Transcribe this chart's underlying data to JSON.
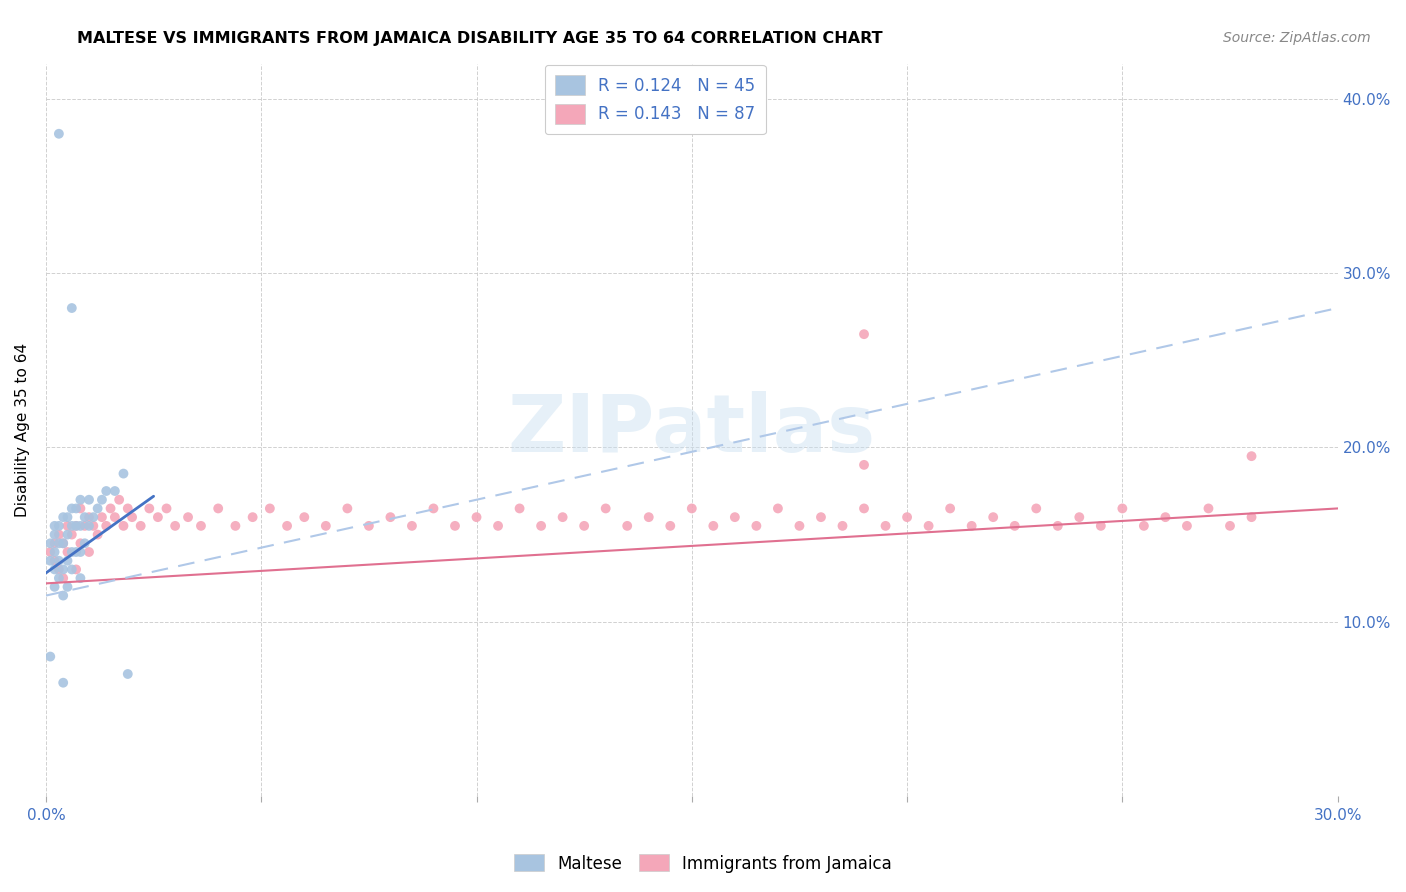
{
  "title": "MALTESE VS IMMIGRANTS FROM JAMAICA DISABILITY AGE 35 TO 64 CORRELATION CHART",
  "source": "Source: ZipAtlas.com",
  "ylabel_label": "Disability Age 35 to 64",
  "xlim": [
    0.0,
    0.3
  ],
  "ylim": [
    0.0,
    0.42
  ],
  "xtick_positions": [
    0.0,
    0.05,
    0.1,
    0.15,
    0.2,
    0.25,
    0.3
  ],
  "xtick_labels": [
    "0.0%",
    "",
    "",
    "",
    "",
    "",
    "30.0%"
  ],
  "ytick_positions": [
    0.0,
    0.1,
    0.2,
    0.3,
    0.4
  ],
  "right_ytick_labels": [
    "",
    "10.0%",
    "20.0%",
    "30.0%",
    "40.0%"
  ],
  "maltese_color": "#a8c4e0",
  "jamaica_color": "#f4a7b9",
  "maltese_line_color": "#4472c4",
  "jamaica_line_color": "#b0c8e8",
  "jamaica_line_color2": "#e07090",
  "watermark": "ZIPatlas",
  "maltese_x": [
    0.001,
    0.001,
    0.002,
    0.002,
    0.002,
    0.002,
    0.002,
    0.003,
    0.003,
    0.003,
    0.003,
    0.004,
    0.004,
    0.004,
    0.004,
    0.005,
    0.005,
    0.005,
    0.005,
    0.006,
    0.006,
    0.006,
    0.006,
    0.007,
    0.007,
    0.007,
    0.008,
    0.008,
    0.008,
    0.008,
    0.009,
    0.009,
    0.01,
    0.01,
    0.011,
    0.012,
    0.013,
    0.014,
    0.016,
    0.018,
    0.003,
    0.006,
    0.019,
    0.001,
    0.004
  ],
  "maltese_y": [
    0.135,
    0.145,
    0.12,
    0.13,
    0.14,
    0.15,
    0.155,
    0.125,
    0.135,
    0.145,
    0.155,
    0.115,
    0.13,
    0.145,
    0.16,
    0.12,
    0.135,
    0.15,
    0.16,
    0.13,
    0.14,
    0.155,
    0.165,
    0.14,
    0.155,
    0.165,
    0.125,
    0.14,
    0.155,
    0.17,
    0.145,
    0.16,
    0.155,
    0.17,
    0.16,
    0.165,
    0.17,
    0.175,
    0.175,
    0.185,
    0.38,
    0.28,
    0.07,
    0.08,
    0.065
  ],
  "jamaica_x": [
    0.001,
    0.002,
    0.002,
    0.003,
    0.003,
    0.004,
    0.004,
    0.005,
    0.005,
    0.006,
    0.007,
    0.007,
    0.008,
    0.008,
    0.009,
    0.01,
    0.01,
    0.011,
    0.012,
    0.013,
    0.014,
    0.015,
    0.016,
    0.017,
    0.018,
    0.019,
    0.02,
    0.022,
    0.024,
    0.026,
    0.028,
    0.03,
    0.033,
    0.036,
    0.04,
    0.044,
    0.048,
    0.052,
    0.056,
    0.06,
    0.065,
    0.07,
    0.075,
    0.08,
    0.085,
    0.09,
    0.095,
    0.1,
    0.105,
    0.11,
    0.115,
    0.12,
    0.125,
    0.13,
    0.135,
    0.14,
    0.145,
    0.15,
    0.155,
    0.16,
    0.165,
    0.17,
    0.175,
    0.18,
    0.185,
    0.19,
    0.195,
    0.2,
    0.205,
    0.21,
    0.215,
    0.22,
    0.225,
    0.23,
    0.235,
    0.24,
    0.245,
    0.25,
    0.255,
    0.26,
    0.265,
    0.27,
    0.275,
    0.28,
    0.19,
    0.28,
    0.19
  ],
  "jamaica_y": [
    0.14,
    0.135,
    0.145,
    0.13,
    0.15,
    0.125,
    0.145,
    0.14,
    0.155,
    0.15,
    0.13,
    0.155,
    0.145,
    0.165,
    0.155,
    0.14,
    0.16,
    0.155,
    0.15,
    0.16,
    0.155,
    0.165,
    0.16,
    0.17,
    0.155,
    0.165,
    0.16,
    0.155,
    0.165,
    0.16,
    0.165,
    0.155,
    0.16,
    0.155,
    0.165,
    0.155,
    0.16,
    0.165,
    0.155,
    0.16,
    0.155,
    0.165,
    0.155,
    0.16,
    0.155,
    0.165,
    0.155,
    0.16,
    0.155,
    0.165,
    0.155,
    0.16,
    0.155,
    0.165,
    0.155,
    0.16,
    0.155,
    0.165,
    0.155,
    0.16,
    0.155,
    0.165,
    0.155,
    0.16,
    0.155,
    0.165,
    0.155,
    0.16,
    0.155,
    0.165,
    0.155,
    0.16,
    0.155,
    0.165,
    0.155,
    0.16,
    0.155,
    0.165,
    0.155,
    0.16,
    0.155,
    0.165,
    0.155,
    0.16,
    0.265,
    0.195,
    0.19
  ],
  "maltese_trend_x": [
    0.0,
    0.025
  ],
  "maltese_trend_y": [
    0.128,
    0.172
  ],
  "jamaica_trend_x": [
    0.0,
    0.3
  ],
  "jamaica_trend_y": [
    0.122,
    0.165
  ],
  "jamaica_dash_trend_x": [
    0.0,
    0.3
  ],
  "jamaica_dash_trend_y": [
    0.115,
    0.28
  ]
}
